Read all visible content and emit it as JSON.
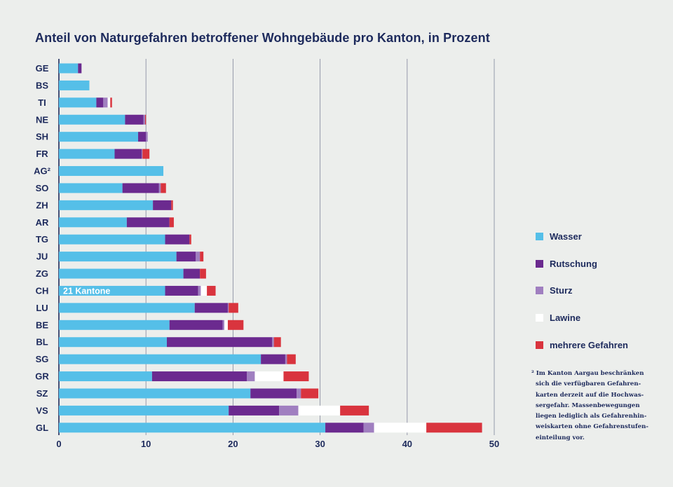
{
  "chart_data": {
    "type": "bar",
    "orientation": "horizontal",
    "stacked": true,
    "title": "Anteil von Naturgefahren betroffener Wohngebäude pro Kanton, in Prozent",
    "categories": [
      "GE",
      "BS",
      "TI",
      "NE",
      "SH",
      "FR",
      "AG²",
      "SO",
      "ZH",
      "AR",
      "TG",
      "JU",
      "ZG",
      "CH",
      "LU",
      "BE",
      "BL",
      "SG",
      "GR",
      "SZ",
      "VS",
      "GL"
    ],
    "series": [
      {
        "name": "Wasser",
        "color": "#55bfe8",
        "values": [
          2.2,
          3.5,
          4.3,
          7.6,
          9.1,
          6.4,
          12.0,
          7.3,
          10.8,
          7.8,
          12.2,
          13.5,
          14.3,
          12.2,
          15.6,
          12.7,
          12.4,
          23.2,
          10.7,
          22.0,
          19.5,
          30.6
        ]
      },
      {
        "name": "Rutschung",
        "color": "#6b2a8f",
        "values": [
          0.4,
          0.0,
          0.8,
          2.1,
          0.9,
          3.1,
          0.0,
          4.2,
          2.1,
          4.9,
          2.8,
          2.2,
          1.9,
          3.8,
          3.8,
          6.1,
          12.1,
          2.8,
          10.9,
          5.3,
          5.8,
          4.4
        ]
      },
      {
        "name": "Sturz",
        "color": "#a07fc0",
        "values": [
          0.0,
          0.0,
          0.5,
          0.2,
          0.2,
          0.1,
          0.0,
          0.2,
          0.0,
          0.0,
          0.0,
          0.5,
          0.0,
          0.3,
          0.1,
          0.2,
          0.2,
          0.2,
          0.9,
          0.5,
          2.2,
          1.2
        ]
      },
      {
        "name": "Lawine",
        "color": "#ffffff",
        "values": [
          0.0,
          0.0,
          0.3,
          0.0,
          0.0,
          0.0,
          0.0,
          0.0,
          0.0,
          0.0,
          0.0,
          0.0,
          0.0,
          0.7,
          0.0,
          0.4,
          0.0,
          0.0,
          3.3,
          0.0,
          4.8,
          6.0
        ]
      },
      {
        "name": "mehrere Gefahren",
        "color": "#d9343e",
        "values": [
          0.0,
          0.0,
          0.2,
          0.1,
          0.0,
          0.8,
          0.0,
          0.6,
          0.2,
          0.5,
          0.2,
          0.4,
          0.7,
          1.0,
          1.1,
          1.8,
          0.8,
          1.0,
          2.9,
          2.0,
          3.3,
          6.4
        ]
      }
    ],
    "annotations": [
      {
        "category": "CH",
        "text": "21 Kantone"
      }
    ],
    "xlim": [
      0,
      50
    ],
    "xticks": [
      "0",
      "10",
      "20",
      "30",
      "40",
      "50"
    ],
    "grid": true,
    "legend_position": "right",
    "colors": {
      "axis_text": "#1d2a5c",
      "grid": "#8c90a4",
      "background": "#eceeec"
    }
  },
  "footnote": {
    "marker": "²",
    "text": "Im Kanton Aargau beschränken sich die verfügbaren Gefahren-karten derzeit auf die Hochwas-sergefahr. Massenbewegungen liegen lediglich als Gefahrenhin-weiskarten ohne Gefahrenstufen-einteilung vor."
  }
}
